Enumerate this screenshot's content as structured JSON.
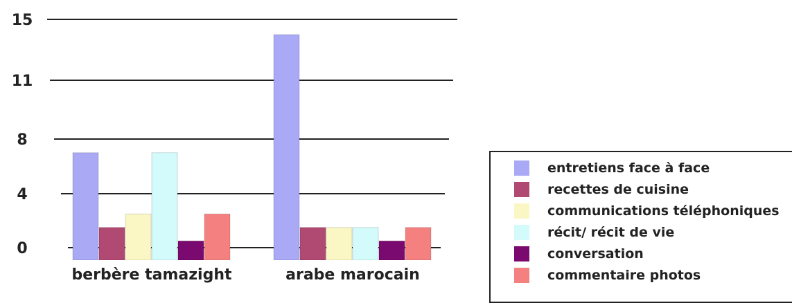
{
  "chart_data": {
    "type": "bar",
    "categories": [
      "berbère tamazight",
      "arabe marocain"
    ],
    "series": [
      {
        "name": "entretiens face à face",
        "color": "#a9a9f5",
        "values": [
          7,
          14
        ]
      },
      {
        "name": "recettes de cuisine",
        "color": "#b04a72",
        "values": [
          1.5,
          1.5
        ]
      },
      {
        "name": "communications téléphoniques",
        "color": "#fbf7c4",
        "values": [
          2.5,
          1.5
        ]
      },
      {
        "name": "récit/ récit de vie",
        "color": "#d3fbfb",
        "values": [
          7,
          1.5
        ]
      },
      {
        "name": "conversation",
        "color": "#7a0a6f",
        "values": [
          0.5,
          0.5
        ]
      },
      {
        "name": "commentaire photos",
        "color": "#f48080",
        "values": [
          2.5,
          1.5
        ]
      }
    ],
    "y_ticks": [
      0,
      4,
      8,
      11,
      15
    ],
    "y_tick_labels": [
      "0",
      "4",
      "8",
      "11",
      "15"
    ],
    "ylim": [
      0,
      15
    ],
    "grid": true,
    "legend_position": "right"
  }
}
